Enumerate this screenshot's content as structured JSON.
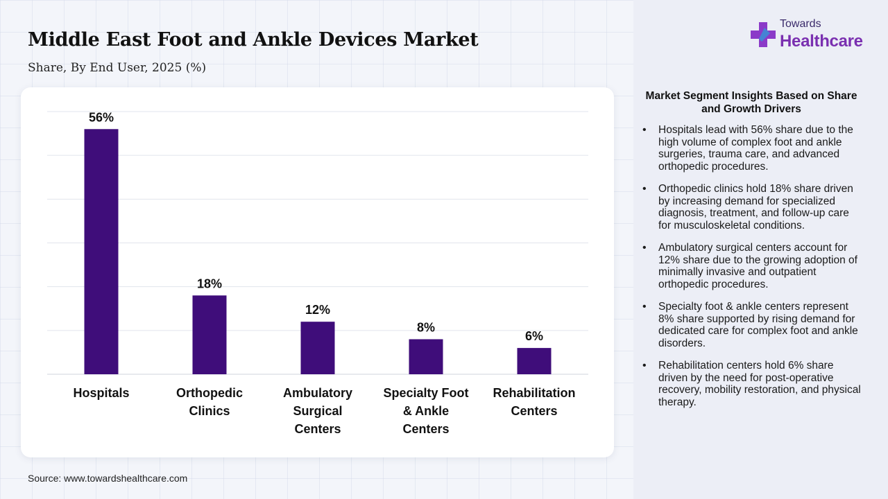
{
  "header": {
    "title": "Middle East Foot and Ankle Devices Market",
    "subtitle": "Share, By End User, 2025 (%)"
  },
  "logo": {
    "line1": "Towards",
    "line2": "Healthcare",
    "icon": "medical-cross-icon"
  },
  "source": "Source: www.towardshealthcare.com",
  "colors": {
    "bar": "#3f0d7a",
    "logo_cross": "#8b3ac8",
    "logo_accent": "#3a8fd6"
  },
  "chart_data": {
    "type": "bar",
    "categories": [
      [
        "Hospitals"
      ],
      [
        "Orthopedic",
        "Clinics"
      ],
      [
        "Ambulatory",
        "Surgical",
        "Centers"
      ],
      [
        "Specialty Foot",
        "& Ankle",
        "Centers"
      ],
      [
        "Rehabilitation",
        "Centers"
      ]
    ],
    "values": [
      56,
      18,
      12,
      8,
      6
    ],
    "data_labels": [
      "56%",
      "18%",
      "12%",
      "8%",
      "6%"
    ],
    "ylim": [
      0,
      60
    ],
    "ytick_step": 10,
    "grid": true,
    "y_axis_labels_shown": false
  },
  "insights": {
    "title": "Market Segment Insights Based on Share and Growth Drivers",
    "items": [
      "Hospitals lead with 56% share due to the high volume of complex foot and ankle surgeries, trauma care, and advanced orthopedic procedures.",
      "Orthopedic clinics hold 18% share driven by increasing demand for specialized diagnosis, treatment, and follow-up care for musculoskeletal conditions.",
      "Ambulatory surgical centers account for 12% share due to the growing adoption of minimally invasive and outpatient orthopedic procedures.",
      "Specialty foot & ankle centers represent 8% share supported by rising demand for dedicated care for complex foot and ankle disorders.",
      "Rehabilitation centers hold 6% share driven by the need for post-operative recovery, mobility restoration, and physical therapy."
    ]
  }
}
